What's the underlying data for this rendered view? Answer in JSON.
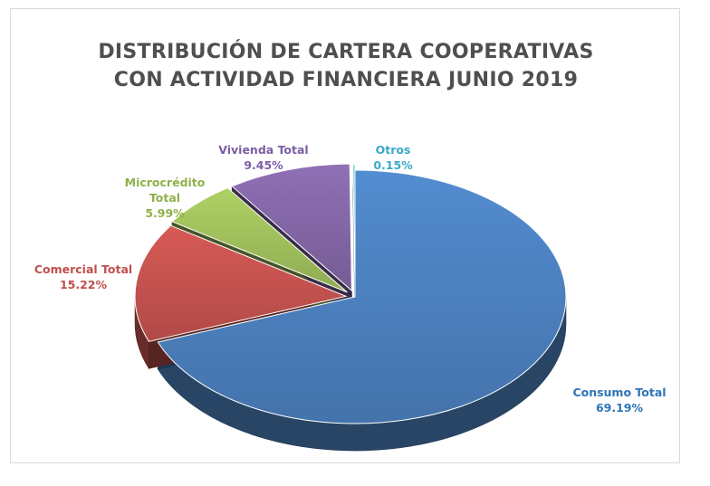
{
  "chart_data": {
    "type": "pie",
    "title_lines": [
      "DISTRIBUCIÓN DE CARTERA COOPERATIVAS",
      "CON ACTIVIDAD FINANCIERA JUNIO 2019"
    ],
    "slices": [
      {
        "name": "Consumo Total",
        "value": 69.19,
        "value_label": "69.19%",
        "color": "#4a7dba"
      },
      {
        "name": "Comercial Total",
        "value": 15.22,
        "value_label": "15.22%",
        "color": "#c0504d"
      },
      {
        "name": "Microcrédito Total",
        "value": 5.99,
        "value_label": "5.99%",
        "color": "#9bbb59"
      },
      {
        "name": "Vivienda Total",
        "value": 9.45,
        "value_label": "9.45%",
        "color": "#8064a2"
      },
      {
        "name": "Otros",
        "value": 0.15,
        "value_label": "0.15%",
        "color": "#4bacc6"
      }
    ]
  }
}
